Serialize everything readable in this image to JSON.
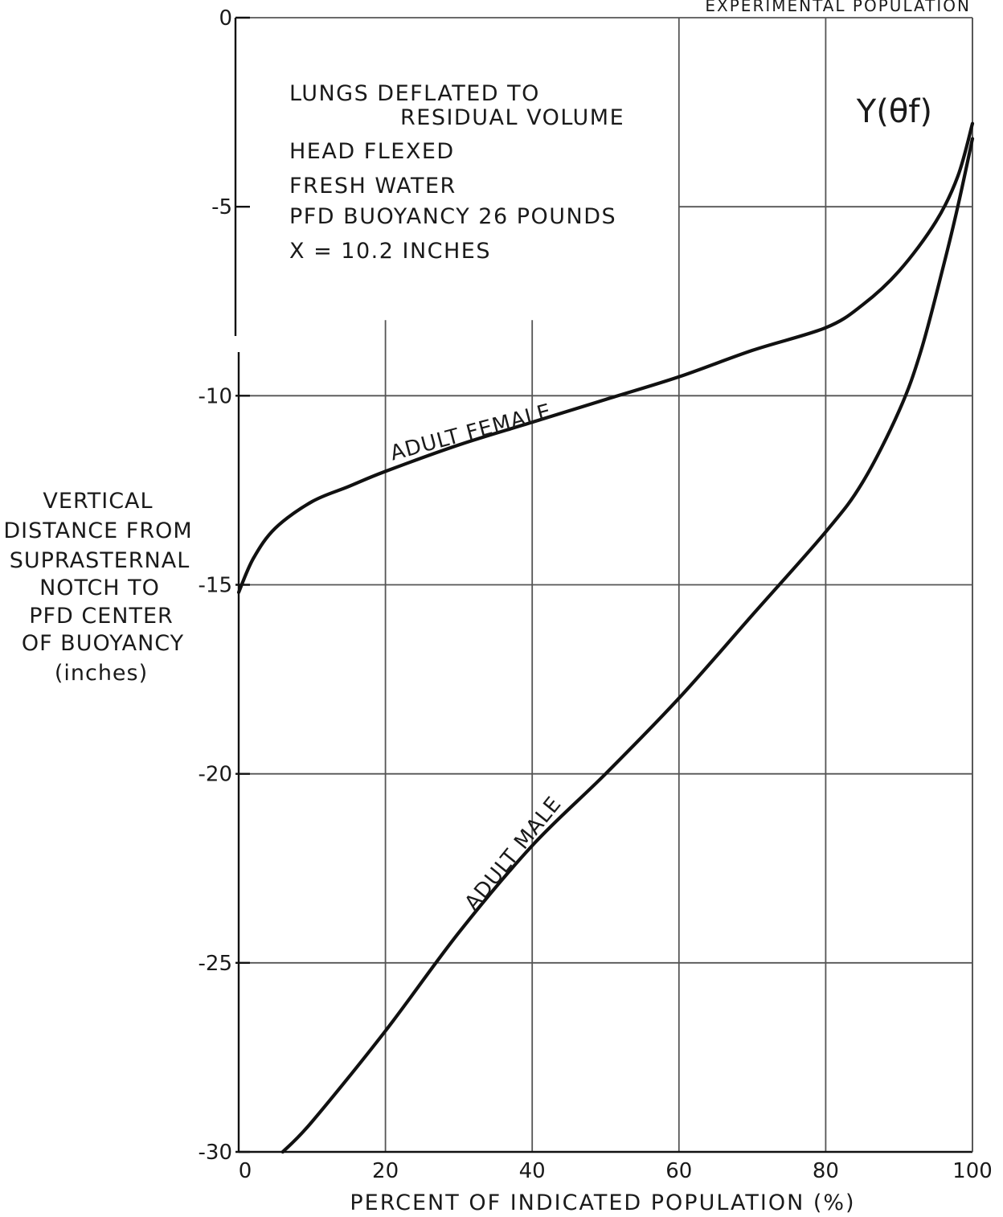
{
  "chart_data": {
    "type": "line",
    "title": "",
    "header_label": "EXPERIMENTAL POPULATION",
    "function_label": "Y(θf)",
    "conditions": [
      "LUNGS DEFLATED TO",
      "RESIDUAL VOLUME",
      "HEAD FLEXED",
      "FRESH WATER",
      "PFD BUOYANCY 26 POUNDS",
      "X = 10.2 INCHES"
    ],
    "xlabel": "PERCENT OF INDICATED POPULATION (%)",
    "ylabel_lines": [
      "VERTICAL",
      "DISTANCE FROM",
      "SUPRASTERNAL",
      "NOTCH TO",
      "PFD CENTER",
      "OF BUOYANCY",
      "(inches)"
    ],
    "xlim": [
      0,
      100
    ],
    "ylim": [
      -30,
      0
    ],
    "x_ticks": [
      0,
      20,
      40,
      60,
      80,
      100
    ],
    "x_tick_labels": [
      "0",
      "20",
      "40",
      "60",
      "80",
      "100"
    ],
    "y_ticks": [
      0,
      -5,
      -10,
      -15,
      -20,
      -25,
      -30
    ],
    "y_tick_labels": [
      "0",
      "-5",
      "-10",
      "-15",
      "-20",
      "-25",
      "-30"
    ],
    "grid": true,
    "series": [
      {
        "name": "ADULT FEMALE",
        "points": [
          [
            0,
            -15.2
          ],
          [
            2,
            -14.3
          ],
          [
            5,
            -13.5
          ],
          [
            10,
            -12.8
          ],
          [
            15,
            -12.4
          ],
          [
            20,
            -12.0
          ],
          [
            30,
            -11.3
          ],
          [
            40,
            -10.7
          ],
          [
            50,
            -10.1
          ],
          [
            60,
            -9.5
          ],
          [
            70,
            -8.8
          ],
          [
            80,
            -8.2
          ],
          [
            85,
            -7.6
          ],
          [
            90,
            -6.7
          ],
          [
            95,
            -5.4
          ],
          [
            98,
            -4.2
          ],
          [
            100,
            -2.8
          ]
        ]
      },
      {
        "name": "ADULT MALE",
        "points": [
          [
            6,
            -30.0
          ],
          [
            10,
            -29.2
          ],
          [
            20,
            -26.8
          ],
          [
            30,
            -24.2
          ],
          [
            40,
            -21.9
          ],
          [
            50,
            -20.0
          ],
          [
            60,
            -18.0
          ],
          [
            70,
            -15.8
          ],
          [
            80,
            -13.6
          ],
          [
            85,
            -12.3
          ],
          [
            90,
            -10.4
          ],
          [
            93,
            -8.8
          ],
          [
            96,
            -6.6
          ],
          [
            98,
            -5.0
          ],
          [
            100,
            -3.2
          ]
        ]
      }
    ]
  }
}
